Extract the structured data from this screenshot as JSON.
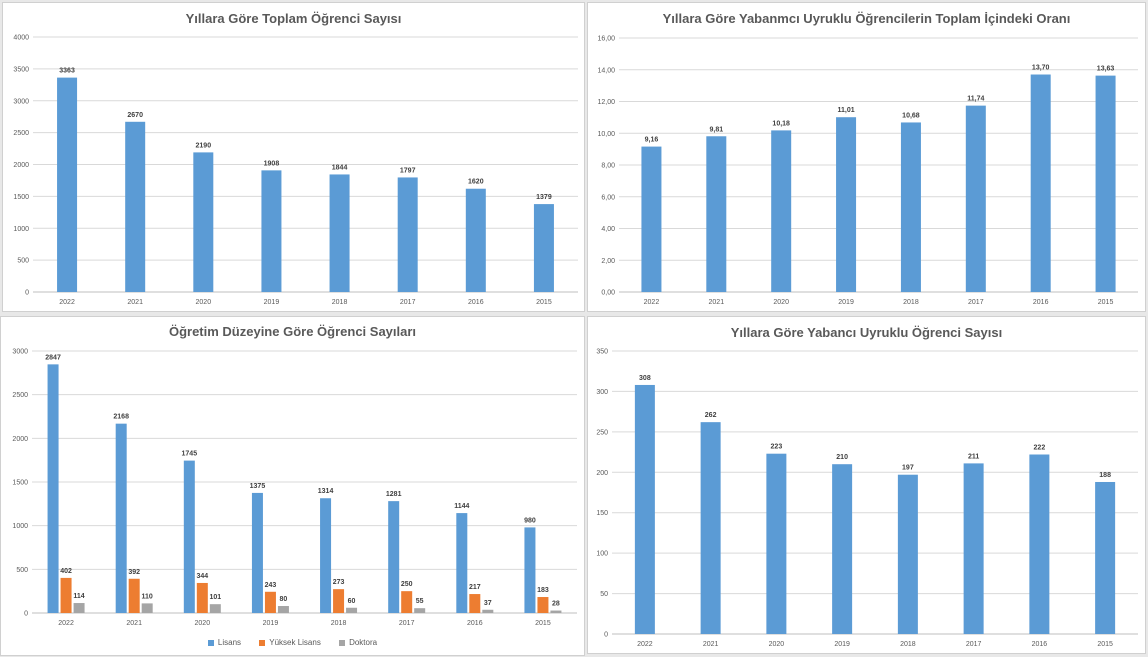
{
  "chart_data": [
    {
      "id": "total",
      "type": "bar",
      "title": "Yıllara Göre Toplam Öğrenci Sayısı",
      "categories": [
        "2022",
        "2021",
        "2020",
        "2019",
        "2018",
        "2017",
        "2016",
        "2015"
      ],
      "series": [
        {
          "values": [
            3363,
            2670,
            2190,
            1908,
            1844,
            1797,
            1620,
            1379
          ],
          "color": "#5b9bd5"
        }
      ],
      "data_labels": [
        "3363",
        "2670",
        "2190",
        "1908",
        "1844",
        "1797",
        "1620",
        "1379"
      ],
      "ylim": [
        0,
        4000
      ],
      "yticks": [
        0,
        500,
        1000,
        1500,
        2000,
        2500,
        3000,
        3500,
        4000
      ],
      "ytick_labels": [
        "0",
        "500",
        "1000",
        "1500",
        "2000",
        "2500",
        "3000",
        "3500",
        "4000"
      ],
      "grid": true,
      "legend": "none"
    },
    {
      "id": "ratio",
      "type": "bar",
      "title": "Yıllara Göre Yabanmcı Uyruklu Öğrencilerin Toplam İçindeki Oranı",
      "categories": [
        "2022",
        "2021",
        "2020",
        "2019",
        "2018",
        "2017",
        "2016",
        "2015"
      ],
      "series": [
        {
          "values": [
            9.16,
            9.81,
            10.18,
            11.01,
            10.68,
            11.74,
            13.7,
            13.63
          ],
          "color": "#5b9bd5"
        }
      ],
      "data_labels": [
        "9,16",
        "9,81",
        "10,18",
        "11,01",
        "10,68",
        "11,74",
        "13,70",
        "13,63"
      ],
      "ylim": [
        0,
        16
      ],
      "yticks": [
        0,
        2,
        4,
        6,
        8,
        10,
        12,
        14,
        16
      ],
      "ytick_labels": [
        "0,00",
        "2,00",
        "4,00",
        "6,00",
        "8,00",
        "10,00",
        "12,00",
        "14,00",
        "16,00"
      ],
      "grid": true,
      "legend": "none"
    },
    {
      "id": "level",
      "type": "bar",
      "title": "Öğretim Düzeyine Göre Öğrenci Sayıları",
      "categories": [
        "2022",
        "2021",
        "2020",
        "2019",
        "2018",
        "2017",
        "2016",
        "2015"
      ],
      "series": [
        {
          "name": "Lisans",
          "values": [
            2847,
            2168,
            1745,
            1375,
            1314,
            1281,
            1144,
            980
          ],
          "color": "#5b9bd5",
          "data_labels": [
            "2847",
            "2168",
            "1745",
            "1375",
            "1314",
            "1281",
            "1144",
            "980"
          ]
        },
        {
          "name": "Yüksek Lisans",
          "values": [
            402,
            392,
            344,
            243,
            273,
            250,
            217,
            183
          ],
          "color": "#ed7d31",
          "data_labels": [
            "402",
            "392",
            "344",
            "243",
            "273",
            "250",
            "217",
            "183"
          ]
        },
        {
          "name": "Doktora",
          "values": [
            114,
            110,
            101,
            80,
            60,
            55,
            37,
            28
          ],
          "color": "#a5a5a5",
          "data_labels": [
            "114",
            "110",
            "101",
            "80",
            "60",
            "55",
            "37",
            "28"
          ]
        }
      ],
      "ylim": [
        0,
        3000
      ],
      "yticks": [
        0,
        500,
        1000,
        1500,
        2000,
        2500,
        3000
      ],
      "ytick_labels": [
        "0",
        "500",
        "1000",
        "1500",
        "2000",
        "2500",
        "3000"
      ],
      "grid": true,
      "legend": "bottom"
    },
    {
      "id": "foreign",
      "type": "bar",
      "title": "Yıllara Göre Yabancı Uyruklu Öğrenci Sayısı",
      "categories": [
        "2022",
        "2021",
        "2020",
        "2019",
        "2018",
        "2017",
        "2016",
        "2015"
      ],
      "series": [
        {
          "values": [
            308,
            262,
            223,
            210,
            197,
            211,
            222,
            188
          ],
          "color": "#5b9bd5"
        }
      ],
      "data_labels": [
        "308",
        "262",
        "223",
        "210",
        "197",
        "211",
        "222",
        "188"
      ],
      "ylim": [
        0,
        350
      ],
      "yticks": [
        0,
        50,
        100,
        150,
        200,
        250,
        300,
        350
      ],
      "ytick_labels": [
        "0",
        "50",
        "100",
        "150",
        "200",
        "250",
        "300",
        "350"
      ],
      "grid": true,
      "legend": "none"
    }
  ]
}
